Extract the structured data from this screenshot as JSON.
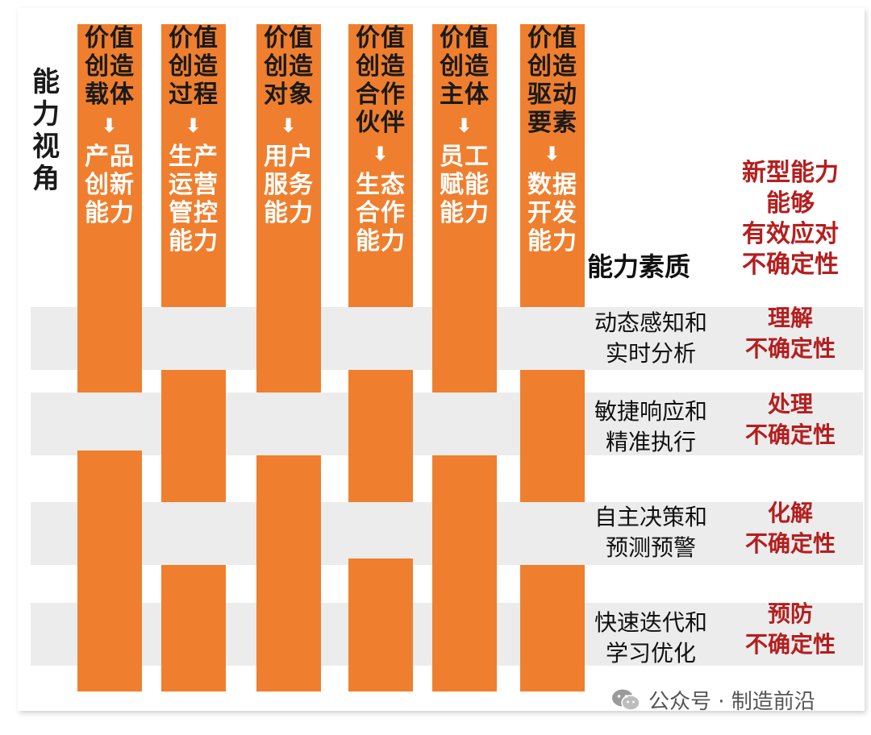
{
  "side_title": "能力\n视角",
  "columns": [
    {
      "top": "价值\n创造\n载体",
      "arrow": "⬇",
      "cap": "产品\n创新\n能力"
    },
    {
      "top": "价值\n创造\n过程",
      "arrow": "⬇",
      "cap": "生产\n运营\n管控\n能力"
    },
    {
      "top": "价值\n创造\n对象",
      "arrow": "⬇",
      "cap": "用户\n服务\n能力"
    },
    {
      "top": "价值\n创造\n合作\n伙伴",
      "arrow": "⬇",
      "cap": "生态\n合作\n能力"
    },
    {
      "top": "价值\n创造\n主体",
      "arrow": "⬇",
      "cap": "员工\n赋能\n能力"
    },
    {
      "top": "价值\n创造\n驱动\n要素",
      "arrow": "⬇",
      "cap": "数据\n开发\n能力"
    }
  ],
  "quality_header": "能力素质",
  "new_ability": "新型能力\n能够\n有效应对\n不确定性",
  "rows": [
    {
      "label": "动态感知和\n实时分析",
      "effect": "理解\n不确定性"
    },
    {
      "label": "敏捷响应和\n精准执行",
      "effect": "处理\n不确定性"
    },
    {
      "label": "自主决策和\n预测预警",
      "effect": "化解\n不确定性"
    },
    {
      "label": "快速迭代和\n学习优化",
      "effect": "预防\n不确定性"
    }
  ],
  "watermark": "公众号 · 制造前沿",
  "colors": {
    "orange": "#ef7f2e",
    "band": "#ececec",
    "red_text": "#b41e1e"
  }
}
